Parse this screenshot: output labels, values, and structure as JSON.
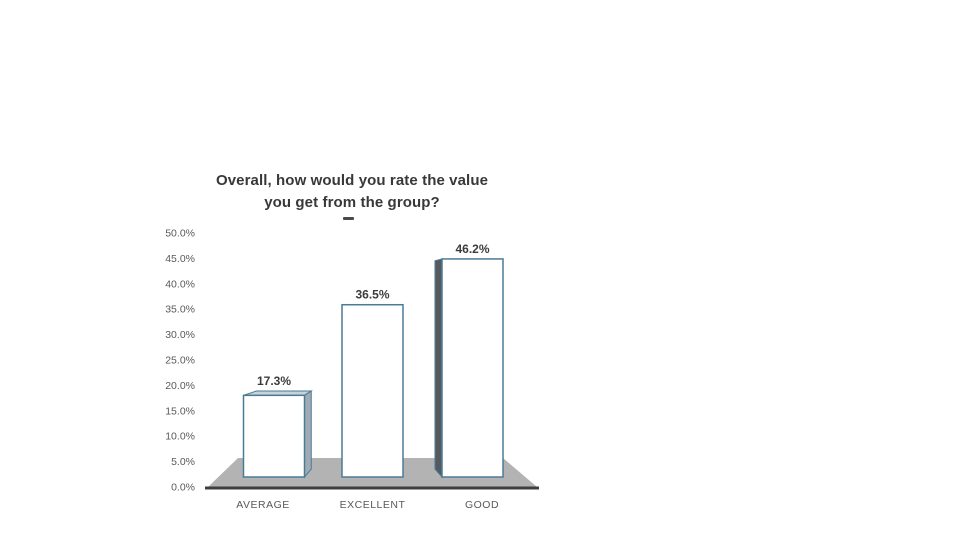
{
  "chart_data": {
    "type": "bar",
    "variant": "3d-column",
    "title": "Overall, how would you rate the value you get from the group?",
    "title_lines": [
      "Overall, how would you rate the value",
      "you get from the group?"
    ],
    "categories": [
      "AVERAGE",
      "EXCELLENT",
      "GOOD"
    ],
    "values": [
      17.3,
      36.5,
      46.2
    ],
    "data_labels": [
      "17.3%",
      "36.5%",
      "46.2%"
    ],
    "y_axis": {
      "min": 0,
      "max": 50,
      "step": 5,
      "tick_labels": [
        "0.0%",
        "5.0%",
        "10.0%",
        "15.0%",
        "20.0%",
        "25.0%",
        "30.0%",
        "35.0%",
        "40.0%",
        "45.0%",
        "50.0%"
      ]
    },
    "grid": false,
    "legend": "none",
    "colors": {
      "bar_fill": "#ffffff",
      "bar_outline": "#4a7b96",
      "top_face": "#cbd1d6",
      "side_face_light": "#9fabb4",
      "side_face_dark": "#555a5f",
      "floor": "#b3b3b3",
      "floor_edge": "#3f3f3f",
      "axis_text": "#595959",
      "label_text": "#3c3c3c",
      "title_text": "#383838"
    }
  }
}
